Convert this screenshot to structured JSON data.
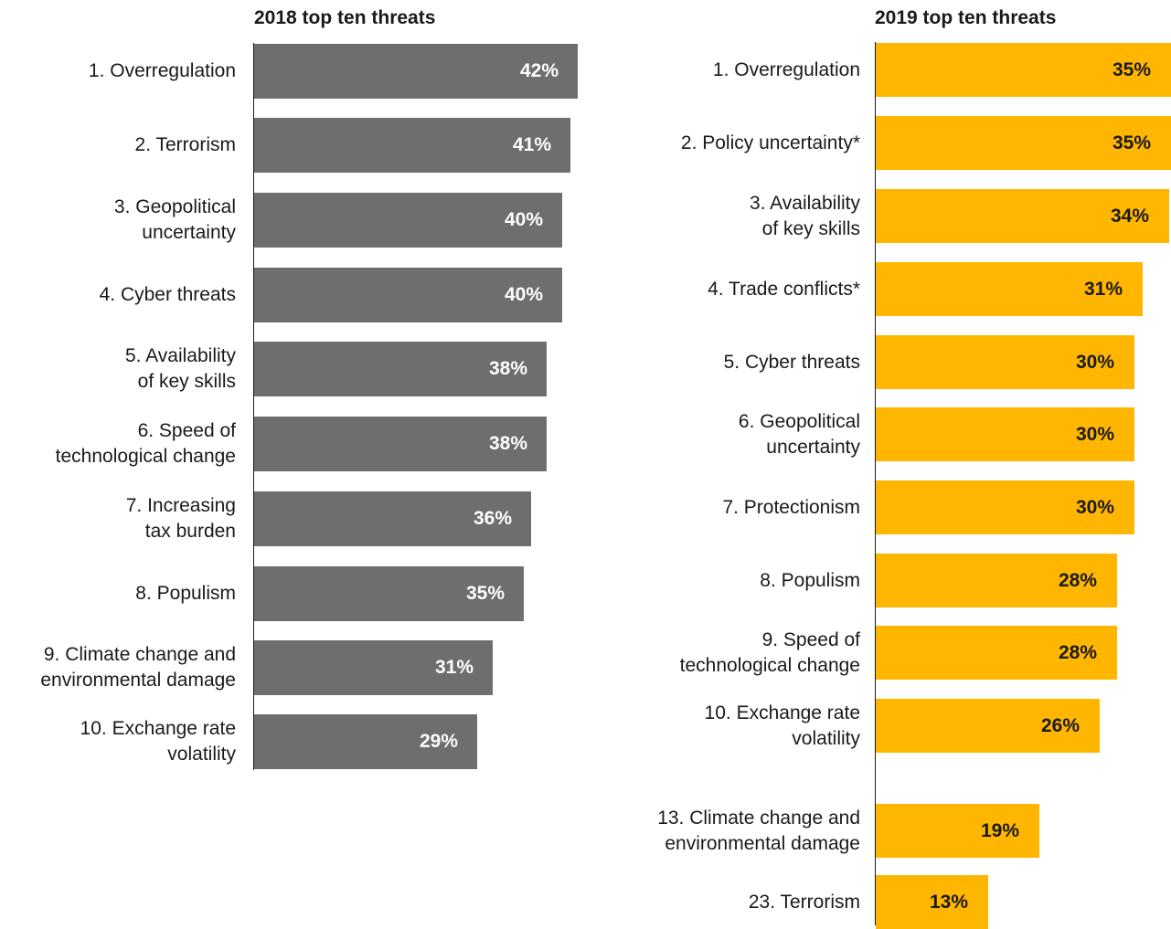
{
  "chart_data": [
    {
      "type": "bar",
      "orientation": "horizontal",
      "title": "2018 top ten threats",
      "colors": {
        "bar": "#6e6e6e",
        "value_label": "#ffffff"
      },
      "xlim": [
        0,
        42
      ],
      "categories": [
        "1. Overregulation",
        "2. Terrorism",
        "3. Geopolitical\nuncertainty",
        "4. Cyber threats",
        "5. Availability\nof key skills",
        "6. Speed of\ntechnological change",
        "7. Increasing\ntax burden",
        "8. Populism",
        "9. Climate change and\nenvironmental damage",
        "10. Exchange rate\nvolatility"
      ],
      "values": [
        42,
        41,
        40,
        40,
        38,
        38,
        36,
        35,
        31,
        29
      ],
      "value_labels": [
        "42%",
        "41%",
        "40%",
        "40%",
        "38%",
        "38%",
        "36%",
        "35%",
        "31%",
        "29%"
      ]
    },
    {
      "type": "bar",
      "orientation": "horizontal",
      "title": "2019 top ten threats",
      "colors": {
        "bar": "#ffb600",
        "value_label": "#1a1a1a"
      },
      "xlim": [
        0,
        35
      ],
      "categories": [
        "1. Overregulation",
        "2. Policy uncertainty*",
        "3. Availability\nof key skills",
        "4. Trade conflicts*",
        "5. Cyber threats",
        "6. Geopolitical\nuncertainty",
        "7. Protectionism",
        "8. Populism",
        "9. Speed of\ntechnological change",
        "10. Exchange rate\nvolatility",
        "13. Climate change and\nenvironmental damage",
        "23. Terrorism"
      ],
      "values": [
        35,
        35,
        34,
        31,
        30,
        30,
        30,
        28,
        28,
        26,
        19,
        13
      ],
      "value_labels": [
        "35%",
        "35%",
        "34%",
        "31%",
        "30%",
        "30%",
        "30%",
        "28%",
        "28%",
        "26%",
        "19%",
        "13%"
      ]
    }
  ]
}
